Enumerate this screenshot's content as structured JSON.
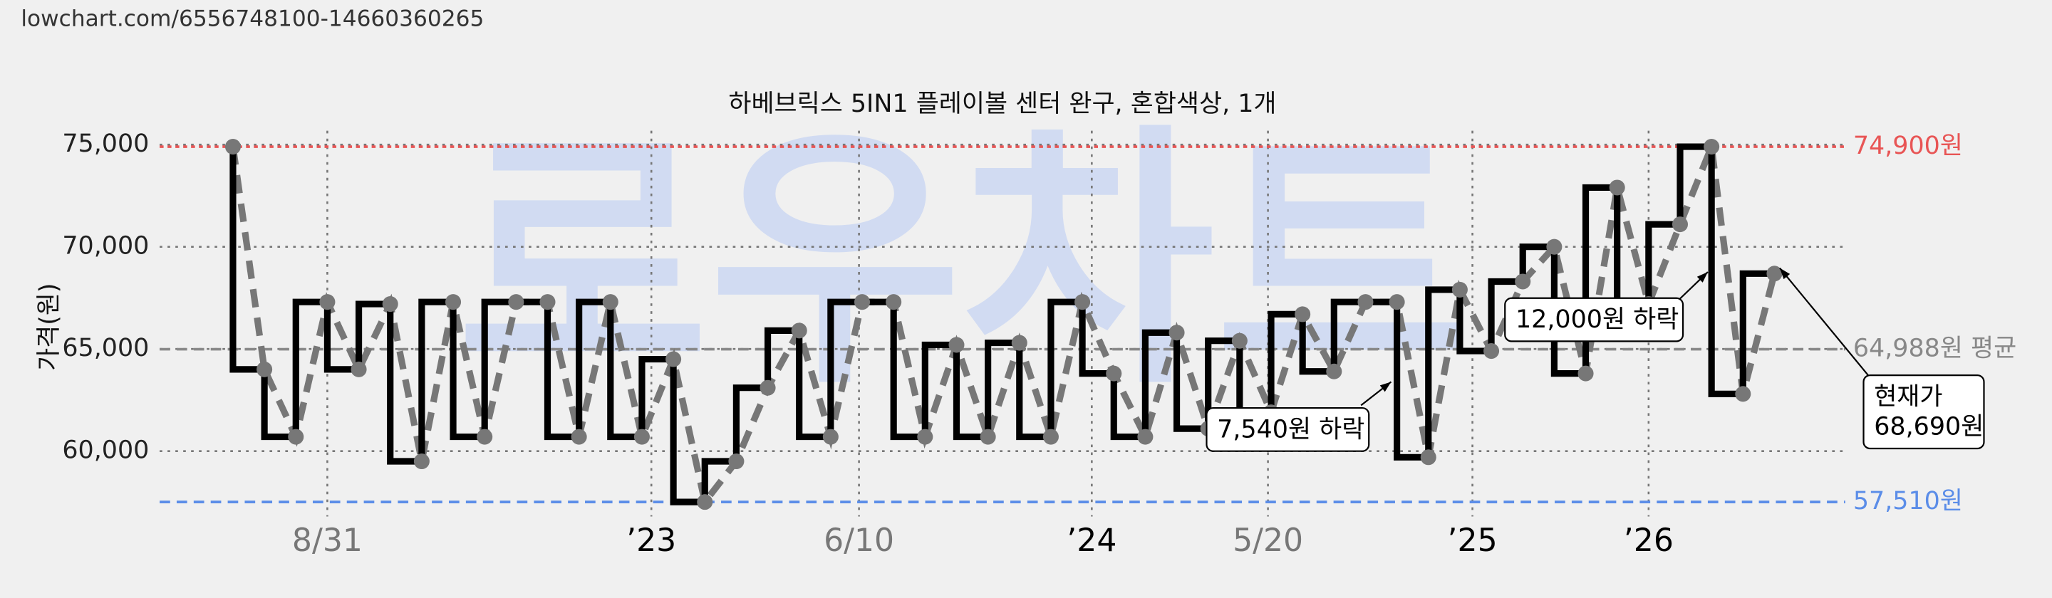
{
  "header": {
    "url": "lowchart.com/6556748100-14660360265"
  },
  "chart_data": {
    "type": "step-line",
    "title": "하베브릭스 5IN1 플레이볼 센터 완구, 혼합색상, 1개",
    "watermark": "로우차트",
    "y_label": "가격(원)",
    "x": [
      0,
      1,
      2,
      3,
      4,
      5,
      6,
      7,
      8,
      9,
      10,
      11,
      12,
      13,
      14,
      15,
      16,
      17,
      18,
      19,
      20,
      21,
      22,
      23,
      24,
      25,
      26,
      27,
      28,
      29,
      30,
      31,
      32,
      33,
      34,
      35,
      36,
      37,
      38,
      39,
      40,
      41,
      42,
      43,
      44,
      45,
      46,
      47,
      48,
      49
    ],
    "series": [
      {
        "color": "#000000",
        "dot_color": "#777777",
        "values": [
          74900,
          64000,
          60700,
          67300,
          64000,
          67200,
          59500,
          67300,
          60700,
          67300,
          67300,
          60700,
          67300,
          60700,
          64500,
          57510,
          59500,
          63100,
          65900,
          60700,
          67300,
          67300,
          60700,
          65200,
          60700,
          65300,
          60700,
          67300,
          63800,
          60700,
          65800,
          61100,
          65400,
          61900,
          66700,
          63900,
          67300,
          67300,
          59700,
          67900,
          64900,
          68300,
          70000,
          63800,
          72900,
          67200,
          71100,
          74900,
          62800,
          68690
        ]
      }
    ],
    "xlim": [
      -2.33,
      51.25
    ],
    "xticks": [
      {
        "value": 3.0,
        "label": "8/31"
      },
      {
        "value": 13.3,
        "label": "’23"
      },
      {
        "value": 19.9,
        "label": "6/10"
      },
      {
        "value": 27.3,
        "label": "’24"
      },
      {
        "value": 32.9,
        "label": "5/20"
      },
      {
        "value": 39.4,
        "label": "’25"
      },
      {
        "value": 45.0,
        "label": "’26"
      }
    ],
    "xtick_colors": [
      "#777777",
      "#000000",
      "#777777",
      "#000000",
      "#777777",
      "#000000",
      "#000000"
    ],
    "ylim": [
      56800,
      76000
    ],
    "yticks": [
      {
        "value": 60000,
        "label": "60,000"
      },
      {
        "value": 65000,
        "label": "65,000"
      },
      {
        "value": 70000,
        "label": "70,000"
      },
      {
        "value": 75000,
        "label": "75,000"
      }
    ],
    "grid": true,
    "ref_lines": [
      {
        "value": 74900,
        "label": "74,900원",
        "color": "#e85555"
      },
      {
        "value": 64988,
        "label": "64,988원 평균",
        "color": "#888888"
      },
      {
        "value": 57510,
        "label": "57,510원",
        "color": "#5b8de8"
      }
    ],
    "annotations": [
      {
        "lines": [
          "7,540원 하락"
        ]
      },
      {
        "lines": [
          "12,000원 하락"
        ]
      },
      {
        "lines": [
          "현재가",
          "68,690원"
        ]
      }
    ]
  }
}
